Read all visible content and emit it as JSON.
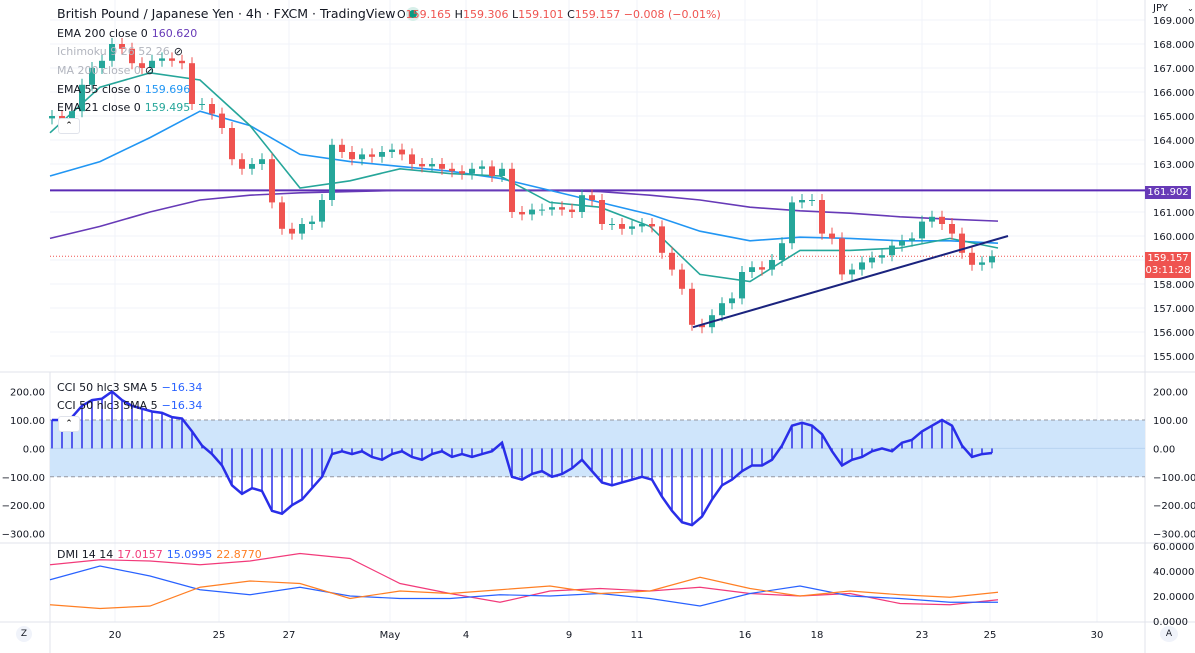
{
  "header": {
    "title": "British Pound / Japanese Yen · 4h · FXCM · TradingView",
    "status_dot_color": "#089981",
    "ohlc": {
      "o_label": "O",
      "o": "159.165",
      "h_label": "H",
      "h": "159.306",
      "l_label": "L",
      "l": "159.101",
      "c_label": "C",
      "c": "159.157",
      "change": "−0.008 (−0.01%)"
    }
  },
  "legend": [
    {
      "name": "EMA 200 close 0",
      "value": "160.620",
      "color": "#673ab7"
    },
    {
      "name": "Ichimoku 9 26 52 26",
      "value": "",
      "hidden": true
    },
    {
      "name": "MA 200 close 0",
      "value": "",
      "hidden": true
    },
    {
      "name": "EMA 55 close 0",
      "value": "159.696",
      "color": "#2196f3"
    },
    {
      "name": "EMA 21 close 0",
      "value": "159.495",
      "color": "#26a69a"
    }
  ],
  "price_axis": {
    "currency": "JPY",
    "ticks": [
      "169.000",
      "168.000",
      "167.000",
      "166.000",
      "165.000",
      "164.000",
      "163.000",
      "161.000",
      "160.000",
      "158.000",
      "157.000",
      "156.000",
      "155.000"
    ],
    "hline_label": "161.902",
    "last_price": "159.157",
    "countdown": "03:11:28"
  },
  "cci": {
    "legend": [
      {
        "name": "CCI 50 hlc3 SMA 5",
        "value": "−16.34"
      },
      {
        "name": "CCI 50 hlc3 SMA 5",
        "value": "−16.34"
      }
    ],
    "ticks": [
      "200.00",
      "100.00",
      "0.00",
      "−100.00",
      "−200.00",
      "−300.00"
    ]
  },
  "dmi": {
    "legend": {
      "name": "DMI 14 14",
      "v1": "17.0157",
      "v2": "15.0995",
      "v3": "22.8770"
    },
    "ticks": [
      "60.0000",
      "40.0000",
      "20.0000",
      "0.0000"
    ]
  },
  "time_axis": {
    "labels": [
      "20",
      "25",
      "27",
      "May",
      "4",
      "9",
      "11",
      "16",
      "18",
      "23",
      "25",
      "30"
    ],
    "zoom_button": "Z",
    "auto_button": "A"
  },
  "chart_data": [
    {
      "type": "candlestick",
      "title": "British Pound / Japanese Yen · 4h · FXCM",
      "ylim": [
        155,
        169
      ],
      "colors": {
        "up": "#26a69a",
        "down": "#ef5350"
      },
      "closes": [
        165,
        164.9,
        165.2,
        166.3,
        167,
        167.3,
        168,
        167.8,
        167.2,
        167,
        167.3,
        167.4,
        167.3,
        167.2,
        165.5,
        165.5,
        165.1,
        164.5,
        163.2,
        162.8,
        163,
        163.2,
        161.4,
        160.3,
        160.1,
        160.5,
        160.6,
        161.5,
        163.8,
        163.5,
        163.2,
        163.4,
        163.3,
        163.5,
        163.6,
        163.4,
        163,
        162.9,
        163,
        162.8,
        162.7,
        162.6,
        162.8,
        162.9,
        162.5,
        162.8,
        161,
        160.9,
        161.1,
        161.1,
        161.2,
        161.1,
        161,
        161.7,
        161.5,
        160.5,
        160.5,
        160.3,
        160.4,
        160.5,
        160.4,
        159.3,
        158.6,
        157.8,
        156.3,
        156.2,
        156.7,
        157.2,
        157.4,
        158.5,
        158.7,
        158.6,
        159,
        159.7,
        161.4,
        161.5,
        161.5,
        160.1,
        159.9,
        158.4,
        158.6,
        158.9,
        159.1,
        159.2,
        159.6,
        159.8,
        159.9,
        160.6,
        160.8,
        160.5,
        160.1,
        159.3,
        158.8,
        158.9,
        159.157
      ],
      "series": [
        {
          "name": "EMA 200 close 0",
          "color": "#673ab7",
          "values": [
            159.9,
            160.4,
            161.0,
            161.5,
            161.7,
            161.8,
            161.85,
            161.9,
            161.9,
            161.9,
            161.9,
            161.85,
            161.7,
            161.5,
            161.2,
            161.05,
            160.95,
            160.8,
            160.7,
            160.62
          ]
        },
        {
          "name": "EMA 55 close 0",
          "color": "#2196f3",
          "values": [
            162.5,
            163.1,
            164.1,
            165.2,
            164.6,
            163.4,
            163.1,
            162.9,
            162.7,
            162.4,
            161.9,
            161.4,
            160.9,
            160.2,
            159.8,
            159.95,
            159.9,
            159.8,
            159.8,
            159.7
          ]
        },
        {
          "name": "EMA 21 close 0",
          "color": "#26a69a",
          "values": [
            164.3,
            166.2,
            166.8,
            166.5,
            164.6,
            162.0,
            162.3,
            162.8,
            162.6,
            162.5,
            161.4,
            161.2,
            160.4,
            158.4,
            158.1,
            159.4,
            159.4,
            159.5,
            159.9,
            159.5
          ]
        }
      ],
      "horizontal_line": 161.902,
      "trendline": {
        "from": 156.2,
        "to": 160.0,
        "color": "#1a237e"
      }
    },
    {
      "type": "line+histogram",
      "name": "CCI 50 hlc3 SMA 5",
      "ylim": [
        -300,
        200
      ],
      "band": [
        -100,
        100
      ],
      "color": "#2a2ee8",
      "values": [
        100,
        100,
        110,
        150,
        170,
        175,
        200,
        170,
        150,
        140,
        130,
        125,
        110,
        105,
        60,
        10,
        -20,
        -60,
        -130,
        -160,
        -140,
        -150,
        -220,
        -230,
        -200,
        -180,
        -140,
        -100,
        -20,
        -10,
        -20,
        -10,
        -30,
        -40,
        -20,
        -10,
        -30,
        -40,
        -20,
        -10,
        -30,
        -20,
        -30,
        -20,
        -10,
        20,
        -100,
        -110,
        -90,
        -80,
        -100,
        -90,
        -70,
        -40,
        -80,
        -120,
        -130,
        -120,
        -110,
        -100,
        -110,
        -170,
        -220,
        -260,
        -270,
        -240,
        -180,
        -130,
        -110,
        -80,
        -60,
        -60,
        -40,
        10,
        80,
        90,
        80,
        50,
        -10,
        -60,
        -40,
        -30,
        -10,
        0,
        -10,
        20,
        30,
        60,
        80,
        100,
        80,
        10,
        -30,
        -20,
        -16.34
      ]
    },
    {
      "type": "line",
      "name": "DMI 14 14",
      "ylim": [
        0,
        60
      ],
      "series": [
        {
          "color": "#f23a7a",
          "values": [
            45,
            49,
            48,
            45,
            48,
            54,
            50,
            30,
            22,
            15,
            24,
            26,
            24,
            27,
            22,
            20,
            22,
            14,
            13,
            17
          ]
        },
        {
          "color": "#2962ff",
          "values": [
            33,
            44,
            36,
            25,
            21,
            27,
            20,
            18,
            18,
            21,
            20,
            22,
            18,
            12,
            22,
            28,
            20,
            18,
            15,
            15
          ]
        },
        {
          "color": "#ff7f24",
          "values": [
            13,
            10,
            12,
            27,
            32,
            30,
            18,
            24,
            22,
            25,
            28,
            22,
            24,
            35,
            26,
            20,
            24,
            21,
            19,
            23
          ]
        }
      ]
    }
  ]
}
